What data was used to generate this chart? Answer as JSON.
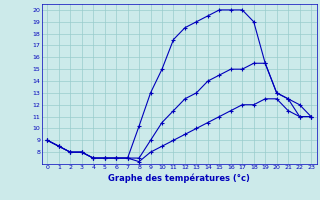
{
  "title": "Graphe des températures (°c)",
  "background_color": "#cceaea",
  "line_color": "#0000bb",
  "grid_color": "#99cccc",
  "xlim": [
    -0.5,
    23.5
  ],
  "ylim": [
    7,
    20.5
  ],
  "xtick_labels": [
    "0",
    "1",
    "2",
    "3",
    "4",
    "5",
    "6",
    "7",
    "8",
    "9",
    "10",
    "11",
    "12",
    "13",
    "14",
    "15",
    "16",
    "17",
    "18",
    "19",
    "20",
    "21",
    "22",
    "23"
  ],
  "ytick_labels": [
    "8",
    "9",
    "10",
    "11",
    "12",
    "13",
    "14",
    "15",
    "16",
    "17",
    "18",
    "19",
    "20"
  ],
  "line1_x": [
    0,
    1,
    2,
    3,
    4,
    5,
    6,
    7,
    8,
    9,
    10,
    11,
    12,
    13,
    14,
    15,
    16,
    17,
    18,
    19,
    20,
    21,
    22,
    23
  ],
  "line1_y": [
    9,
    8.5,
    8,
    8,
    7.5,
    7.5,
    7.5,
    7.5,
    7.2,
    8,
    8.5,
    9,
    9.5,
    10,
    10.5,
    11,
    11.5,
    12,
    12,
    12.5,
    12.5,
    11.5,
    11,
    11
  ],
  "line2_x": [
    0,
    1,
    2,
    3,
    4,
    5,
    6,
    7,
    8,
    9,
    10,
    11,
    12,
    13,
    14,
    15,
    16,
    17,
    18,
    19,
    20,
    21,
    22,
    23
  ],
  "line2_y": [
    9,
    8.5,
    8,
    8,
    7.5,
    7.5,
    7.5,
    7.5,
    10.2,
    13,
    15,
    17.5,
    18.5,
    19,
    19.5,
    20,
    20,
    20,
    19,
    15.5,
    13,
    12.5,
    11,
    11
  ],
  "line3_x": [
    0,
    1,
    2,
    3,
    4,
    5,
    6,
    7,
    8,
    9,
    10,
    11,
    12,
    13,
    14,
    15,
    16,
    17,
    18,
    19,
    20,
    21,
    22,
    23
  ],
  "line3_y": [
    9,
    8.5,
    8,
    8,
    7.5,
    7.5,
    7.5,
    7.5,
    7.5,
    9,
    10.5,
    11.5,
    12.5,
    13,
    14,
    14.5,
    15,
    15,
    15.5,
    15.5,
    13,
    12.5,
    12,
    11
  ]
}
